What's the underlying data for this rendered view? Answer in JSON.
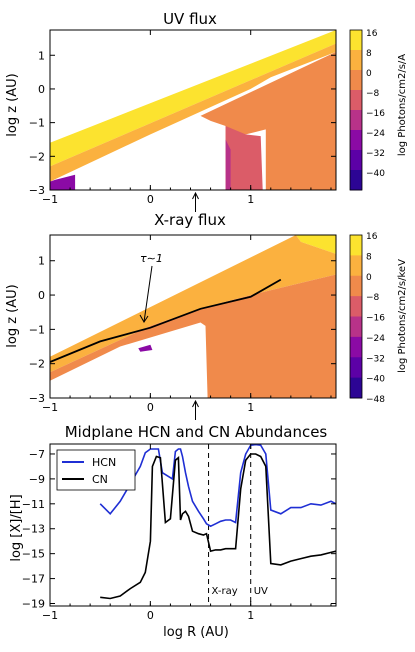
{
  "chart_data": [
    {
      "type": "heatmap",
      "title": "UV flux",
      "ylabel": "log z (AU)",
      "xlim": [
        -1,
        1.85
      ],
      "ylim": [
        -3,
        1.75
      ],
      "x_ticks": [
        -1,
        0,
        1
      ],
      "y_ticks": [
        -3,
        -2,
        -1,
        0,
        1
      ],
      "colorbar": {
        "label": "log Photons/cm2/s/A",
        "ticks": [
          16,
          8,
          0,
          -8,
          -16,
          -24,
          -32,
          -40
        ],
        "colors": [
          "#fce32f",
          "#fbb13f",
          "#f08a4b",
          "#db5c68",
          "#b83289",
          "#8b0aa5",
          "#5c01a6",
          "#2c0594"
        ]
      },
      "regions": [
        {
          "level": 16,
          "color": "#fce32f",
          "polygon": [
            [
              -1,
              -1.6
            ],
            [
              1.85,
              1.75
            ],
            [
              1.85,
              1.35
            ],
            [
              -1,
              -2.3
            ]
          ]
        },
        {
          "level": 8,
          "color": "#fbb13f",
          "polygon": [
            [
              -1,
              -2.3
            ],
            [
              1.85,
              1.35
            ],
            [
              1.85,
              1.1
            ],
            [
              1.2,
              0.35
            ],
            [
              1.0,
              0.0
            ],
            [
              0.0,
              -1.35
            ],
            [
              -1,
              -2.75
            ]
          ]
        },
        {
          "level": 0,
          "color": "#f08a4b",
          "polygon": [
            [
              0.5,
              -0.8
            ],
            [
              1.85,
              1.1
            ],
            [
              1.85,
              -3
            ],
            [
              1.15,
              -3
            ],
            [
              1.15,
              -1.2
            ],
            [
              0.95,
              -1.35
            ],
            [
              0.8,
              -1.25
            ],
            [
              0.78,
              -3
            ],
            [
              0.75,
              -3
            ],
            [
              0.75,
              -1.1
            ],
            [
              0.6,
              -0.95
            ]
          ]
        },
        {
          "level": -8,
          "color": "#db5c68",
          "polygon": [
            [
              0.75,
              -1.1
            ],
            [
              0.95,
              -1.35
            ],
            [
              1.1,
              -1.4
            ],
            [
              1.12,
              -3
            ],
            [
              0.78,
              -3
            ],
            [
              0.75,
              -1.5
            ]
          ]
        },
        {
          "level": -16,
          "color": "#b83289",
          "polygon": [
            [
              0.75,
              -1.5
            ],
            [
              0.8,
              -1.8
            ],
            [
              0.8,
              -3
            ],
            [
              0.75,
              -3
            ]
          ]
        },
        {
          "level": -24,
          "color": "#8b0aa5",
          "polygon": [
            [
              -1,
              -2.75
            ],
            [
              -0.95,
              -2.7
            ],
            [
              -0.75,
              -2.55
            ],
            [
              -0.75,
              -3
            ],
            [
              -1,
              -3
            ]
          ]
        }
      ],
      "annotation_arrow_x": 0.45
    },
    {
      "type": "heatmap",
      "title": "X-ray flux",
      "ylabel": "log z (AU)",
      "xlim": [
        -1,
        1.85
      ],
      "ylim": [
        -3,
        1.75
      ],
      "x_ticks": [
        -1,
        0,
        1
      ],
      "y_ticks": [
        -3,
        -2,
        -1,
        0,
        1
      ],
      "colorbar": {
        "label": "log Photons/cm2/s/keV",
        "ticks": [
          16,
          8,
          0,
          -8,
          -16,
          -24,
          -32,
          -40,
          -48
        ],
        "colors": [
          "#fce32f",
          "#fbb13f",
          "#f08a4b",
          "#db5c68",
          "#b83289",
          "#8b0aa5",
          "#5c01a6",
          "#2c0594"
        ]
      },
      "regions": [
        {
          "level": 16,
          "color": "#fce32f",
          "polygon": [
            [
              1.45,
              1.75
            ],
            [
              1.85,
              1.75
            ],
            [
              1.85,
              1.2
            ],
            [
              1.5,
              1.55
            ]
          ]
        },
        {
          "level": 8,
          "color": "#fbb13f",
          "polygon": [
            [
              -1,
              -1.8
            ],
            [
              1.45,
              1.75
            ],
            [
              1.5,
              1.55
            ],
            [
              1.85,
              1.2
            ],
            [
              1.85,
              0.6
            ],
            [
              1.0,
              0.0
            ],
            [
              0.55,
              -0.35
            ],
            [
              0.0,
              -0.9
            ],
            [
              -1,
              -2.25
            ]
          ]
        },
        {
          "level": 0,
          "color": "#f08a4b",
          "polygon": [
            [
              -1,
              -2.25
            ],
            [
              0.0,
              -0.9
            ],
            [
              0.55,
              -0.35
            ],
            [
              1.0,
              0.0
            ],
            [
              1.85,
              0.6
            ],
            [
              1.85,
              -3
            ],
            [
              0.57,
              -3
            ],
            [
              0.55,
              -0.9
            ],
            [
              0.5,
              -0.8
            ],
            [
              -0.3,
              -1.5
            ],
            [
              -1,
              -2.5
            ]
          ]
        },
        {
          "level": -24,
          "color": "#8b0aa5",
          "polygon": [
            [
              -0.12,
              -1.55
            ],
            [
              0.0,
              -1.45
            ],
            [
              0.02,
              -1.6
            ],
            [
              -0.1,
              -1.65
            ]
          ]
        }
      ],
      "tau_line": {
        "x": [
          -1,
          -0.5,
          0,
          0.5,
          1,
          1.3
        ],
        "y": [
          -1.95,
          -1.35,
          -0.95,
          -0.4,
          -0.05,
          0.45
        ]
      },
      "tau_label": "τ∼1",
      "annotation_arrow_x": 0.45
    },
    {
      "type": "line",
      "title": "Midplane HCN and CN Abundances",
      "xlabel": "log R (AU)",
      "ylabel": "log [X]/[H]",
      "xlim": [
        -1,
        1.85
      ],
      "ylim": [
        -19.2,
        -6.2
      ],
      "x_ticks": [
        -1,
        0,
        1
      ],
      "y_ticks": [
        -19,
        -17,
        -15,
        -13,
        -11,
        -9,
        -7
      ],
      "vlines": [
        {
          "x": 0.58,
          "label": "X-ray"
        },
        {
          "x": 1.0,
          "label": "UV"
        }
      ],
      "legend": "top-left",
      "series": [
        {
          "name": "HCN",
          "color": "#1f2fd4",
          "x": [
            -0.5,
            -0.4,
            -0.3,
            -0.2,
            -0.1,
            -0.05,
            0.0,
            0.03,
            0.08,
            0.12,
            0.18,
            0.22,
            0.25,
            0.28,
            0.3,
            0.32,
            0.35,
            0.38,
            0.42,
            0.48,
            0.53,
            0.56,
            0.6,
            0.65,
            0.7,
            0.75,
            0.8,
            0.85,
            0.9,
            0.95,
            1.0,
            1.05,
            1.1,
            1.15,
            1.2,
            1.3,
            1.4,
            1.5,
            1.6,
            1.7,
            1.8,
            1.85
          ],
          "y": [
            -11.0,
            -11.8,
            -10.8,
            -9.4,
            -8.0,
            -6.9,
            -6.6,
            -6.6,
            -6.6,
            -8.5,
            -8.8,
            -9.0,
            -6.8,
            -6.6,
            -6.6,
            -7.2,
            -8.5,
            -9.6,
            -10.8,
            -11.6,
            -12.2,
            -12.6,
            -12.8,
            -12.6,
            -12.4,
            -12.3,
            -12.3,
            -12.5,
            -8.5,
            -7.0,
            -6.3,
            -6.25,
            -6.3,
            -7.0,
            -11.5,
            -11.8,
            -11.3,
            -11.3,
            -11.0,
            -11.1,
            -10.8,
            -11.0
          ]
        },
        {
          "name": "CN",
          "color": "#000000",
          "x": [
            -0.5,
            -0.4,
            -0.3,
            -0.2,
            -0.1,
            -0.05,
            0.0,
            0.02,
            0.06,
            0.1,
            0.15,
            0.2,
            0.25,
            0.28,
            0.3,
            0.32,
            0.35,
            0.38,
            0.42,
            0.48,
            0.53,
            0.56,
            0.6,
            0.65,
            0.7,
            0.75,
            0.8,
            0.85,
            0.9,
            0.95,
            1.0,
            1.05,
            1.1,
            1.15,
            1.2,
            1.3,
            1.4,
            1.5,
            1.6,
            1.7,
            1.8,
            1.85
          ],
          "y": [
            -18.5,
            -18.6,
            -18.4,
            -17.8,
            -17.3,
            -16.5,
            -14.0,
            -8.0,
            -7.2,
            -7.3,
            -12.5,
            -12.2,
            -7.5,
            -7.3,
            -12.3,
            -11.8,
            -11.6,
            -12.0,
            -13.2,
            -13.4,
            -13.5,
            -13.4,
            -14.8,
            -14.7,
            -14.7,
            -14.6,
            -14.6,
            -14.6,
            -9.8,
            -7.5,
            -7.0,
            -7.0,
            -7.2,
            -8.0,
            -15.8,
            -15.9,
            -15.6,
            -15.4,
            -15.2,
            -15.1,
            -14.9,
            -14.8
          ]
        }
      ]
    }
  ]
}
